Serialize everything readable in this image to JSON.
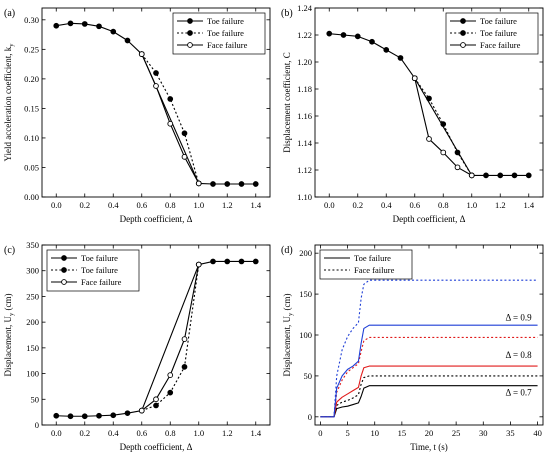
{
  "colors": {
    "black": "#000000",
    "blue": "#1f3fd6",
    "red": "#e01b1b",
    "white": "#ffffff"
  },
  "chart_data": [
    {
      "panel": "(a)",
      "type": "line",
      "xlabel": "Depth coefficient, Δ",
      "ylabel": "Yield acceleration coefficient, k",
      "ylabel_sub": "y",
      "xlim": [
        -0.1,
        1.5
      ],
      "ylim": [
        0.0,
        0.32
      ],
      "xticks": [
        0.0,
        0.2,
        0.4,
        0.6,
        0.8,
        1.0,
        1.2,
        1.4
      ],
      "yticks": [
        0.0,
        0.05,
        0.1,
        0.15,
        0.2,
        0.25,
        0.3
      ],
      "xtick_labels": [
        "0.0",
        "0.2",
        "0.4",
        "0.6",
        "0.8",
        "1.0",
        "1.2",
        "1.4"
      ],
      "ytick_labels": [
        "0.00",
        "0.05",
        "0.10",
        "0.15",
        "0.20",
        "0.25",
        "0.30"
      ],
      "legend_position": "top-right",
      "series": [
        {
          "name": "Toe failure",
          "style": "solid",
          "marker": "filled",
          "x": [
            0.0,
            0.1,
            0.2,
            0.3,
            0.4,
            0.5,
            0.6,
            1.0,
            1.1,
            1.2,
            1.3,
            1.4
          ],
          "y": [
            0.29,
            0.294,
            0.293,
            0.289,
            0.28,
            0.265,
            0.242,
            0.023,
            0.022,
            0.022,
            0.022,
            0.022
          ]
        },
        {
          "name": "Toe failure",
          "style": "dotted",
          "marker": "filled",
          "x": [
            0.6,
            0.7,
            0.8,
            0.9,
            1.0
          ],
          "y": [
            0.242,
            0.21,
            0.166,
            0.108,
            0.023
          ]
        },
        {
          "name": "Face failure",
          "style": "solid",
          "marker": "open",
          "x": [
            0.6,
            0.7,
            0.8,
            0.9,
            1.0
          ],
          "y": [
            0.242,
            0.188,
            0.124,
            0.068,
            0.023
          ]
        }
      ]
    },
    {
      "panel": "(b)",
      "type": "line",
      "xlabel": "Depth coefficient, Δ",
      "ylabel": "Displacement coefficient, C",
      "ylabel_sub": "",
      "xlim": [
        -0.1,
        1.5
      ],
      "ylim": [
        1.1,
        1.24
      ],
      "xticks": [
        0.0,
        0.2,
        0.4,
        0.6,
        0.8,
        1.0,
        1.2,
        1.4
      ],
      "yticks": [
        1.1,
        1.12,
        1.14,
        1.16,
        1.18,
        1.2,
        1.22,
        1.24
      ],
      "xtick_labels": [
        "0.0",
        "0.2",
        "0.4",
        "0.6",
        "0.8",
        "1.0",
        "1.2",
        "1.4"
      ],
      "ytick_labels": [
        "1.10",
        "1.12",
        "1.14",
        "1.16",
        "1.18",
        "1.20",
        "1.22",
        "1.24"
      ],
      "legend_position": "top-right",
      "series": [
        {
          "name": "Toe failure",
          "style": "solid",
          "marker": "filled",
          "x": [
            0.0,
            0.1,
            0.2,
            0.3,
            0.4,
            0.5,
            0.6,
            1.0,
            1.1,
            1.2,
            1.3,
            1.4
          ],
          "y": [
            1.221,
            1.22,
            1.219,
            1.215,
            1.209,
            1.203,
            1.188,
            1.116,
            1.116,
            1.116,
            1.116,
            1.116
          ]
        },
        {
          "name": "Toe failure",
          "style": "dotted",
          "marker": "filled",
          "x": [
            0.6,
            0.7,
            0.8,
            0.9,
            1.0
          ],
          "y": [
            1.188,
            1.173,
            1.154,
            1.133,
            1.116
          ]
        },
        {
          "name": "Face failure",
          "style": "solid",
          "marker": "open",
          "x": [
            0.6,
            0.7,
            0.8,
            0.9,
            1.0
          ],
          "y": [
            1.188,
            1.143,
            1.133,
            1.122,
            1.116
          ]
        }
      ]
    },
    {
      "panel": "(c)",
      "type": "line",
      "xlabel": "Depth coefficient, Δ",
      "ylabel": "Displacement, U",
      "ylabel_sub": "y",
      "ylabel_unit": " (cm)",
      "xlim": [
        -0.1,
        1.5
      ],
      "ylim": [
        0,
        350
      ],
      "xticks": [
        0.0,
        0.2,
        0.4,
        0.6,
        0.8,
        1.0,
        1.2,
        1.4
      ],
      "yticks": [
        0,
        50,
        100,
        150,
        200,
        250,
        300,
        350
      ],
      "xtick_labels": [
        "0.0",
        "0.2",
        "0.4",
        "0.6",
        "0.8",
        "1.0",
        "1.2",
        "1.4"
      ],
      "ytick_labels": [
        "0",
        "50",
        "100",
        "150",
        "200",
        "250",
        "300",
        "350"
      ],
      "legend_position": "top-left",
      "series": [
        {
          "name": "Toe failure",
          "style": "solid",
          "marker": "filled",
          "x": [
            0.0,
            0.1,
            0.2,
            0.3,
            0.4,
            0.5,
            0.6,
            1.0,
            1.1,
            1.2,
            1.3,
            1.4
          ],
          "y": [
            18,
            17,
            17,
            18,
            19,
            23,
            28,
            312,
            318,
            318,
            318,
            318
          ]
        },
        {
          "name": "Toe failure",
          "style": "dotted",
          "marker": "filled",
          "x": [
            0.6,
            0.7,
            0.8,
            0.9,
            1.0
          ],
          "y": [
            28,
            38,
            63,
            113,
            312
          ]
        },
        {
          "name": "Face failure",
          "style": "solid",
          "marker": "open",
          "x": [
            0.6,
            0.7,
            0.8,
            0.9,
            1.0
          ],
          "y": [
            28,
            50,
            97,
            167,
            312
          ]
        }
      ]
    },
    {
      "panel": "(d)",
      "type": "line",
      "xlabel": "Time, t (s)",
      "ylabel": "Displacement, U",
      "ylabel_sub": "y",
      "ylabel_unit": " (cm)",
      "xlim": [
        -1,
        41
      ],
      "ylim": [
        -10,
        210
      ],
      "xticks": [
        0,
        5,
        10,
        15,
        20,
        25,
        30,
        35,
        40
      ],
      "yticks": [
        0,
        50,
        100,
        150,
        200
      ],
      "xtick_labels": [
        "0",
        "5",
        "10",
        "15",
        "20",
        "25",
        "30",
        "35",
        "40"
      ],
      "ytick_labels": [
        "0",
        "50",
        "100",
        "150",
        "200"
      ],
      "legend_position": "top-left",
      "legend": [
        {
          "name": "Toe failure",
          "style": "solid"
        },
        {
          "name": "Face failure",
          "style": "dotted"
        }
      ],
      "annotations": [
        {
          "text": "Δ = 0.9",
          "x": 36.5,
          "y": 118,
          "color": "blue"
        },
        {
          "text": "Δ = 0.8",
          "x": 36.5,
          "y": 72,
          "color": "red"
        },
        {
          "text": "Δ = 0.7",
          "x": 36.5,
          "y": 26,
          "color": "black"
        }
      ],
      "series": [
        {
          "delta": 0.7,
          "failure": "Toe failure",
          "style": "solid",
          "color": "black",
          "x": [
            0,
            2.5,
            3,
            4,
            5,
            6,
            7,
            7.5,
            8,
            9,
            10,
            40
          ],
          "y": [
            0,
            0,
            10,
            12,
            13,
            15,
            17,
            25,
            35,
            38,
            38,
            38
          ]
        },
        {
          "delta": 0.7,
          "failure": "Face failure",
          "style": "dotted",
          "color": "black",
          "x": [
            0,
            2.5,
            3,
            4,
            5,
            6,
            7,
            7.5,
            8,
            9,
            10,
            40
          ],
          "y": [
            0,
            0,
            14,
            18,
            20,
            23,
            27,
            40,
            48,
            50,
            50,
            50
          ]
        },
        {
          "delta": 0.8,
          "failure": "Toe failure",
          "style": "solid",
          "color": "red",
          "x": [
            0,
            2.5,
            3,
            4,
            5,
            6,
            7,
            7.5,
            8,
            9,
            10,
            40
          ],
          "y": [
            0,
            0,
            18,
            24,
            28,
            32,
            36,
            50,
            60,
            62,
            62,
            62
          ]
        },
        {
          "delta": 0.8,
          "failure": "Face failure",
          "style": "dotted",
          "color": "red",
          "x": [
            0,
            2.5,
            3,
            4,
            5,
            6,
            7,
            7.5,
            8,
            9,
            10,
            40
          ],
          "y": [
            0,
            0,
            30,
            45,
            55,
            60,
            65,
            80,
            93,
            97,
            97,
            97
          ]
        },
        {
          "delta": 0.9,
          "failure": "Toe failure",
          "style": "solid",
          "color": "blue",
          "x": [
            0,
            2.5,
            3,
            4,
            5,
            6,
            7,
            7.5,
            8,
            9,
            10,
            40
          ],
          "y": [
            0,
            0,
            35,
            50,
            58,
            62,
            68,
            90,
            108,
            112,
            112,
            112
          ]
        },
        {
          "delta": 0.9,
          "failure": "Face failure",
          "style": "dotted",
          "color": "blue",
          "x": [
            0,
            2.5,
            3,
            4,
            5,
            6,
            7,
            7.5,
            8,
            9,
            10,
            40
          ],
          "y": [
            0,
            0,
            50,
            82,
            98,
            108,
            115,
            145,
            162,
            167,
            167,
            167
          ]
        }
      ]
    }
  ]
}
